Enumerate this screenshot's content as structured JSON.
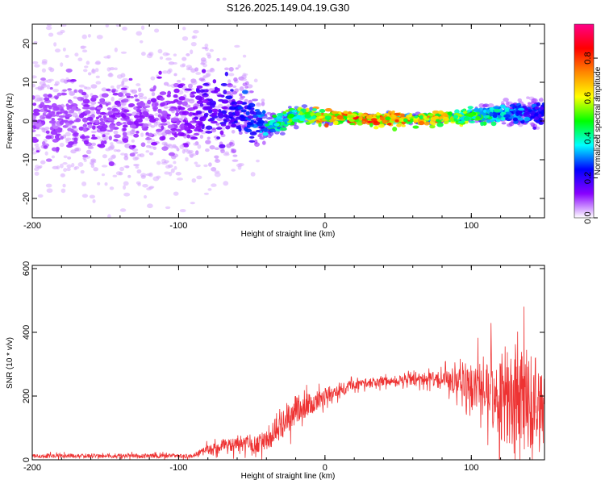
{
  "title": "S126.2025.149.04.19.G30",
  "chart_data": [
    {
      "type": "heatmap",
      "xlabel": "Height of straight line (km)",
      "ylabel": "Frequency (Hz)",
      "xlim": [
        -200,
        150
      ],
      "ylim": [
        -25,
        25
      ],
      "x_ticks": [
        -200,
        -100,
        0,
        100
      ],
      "x_tick_labels": [
        "-200",
        "-100",
        "0",
        "100"
      ],
      "y_ticks": [
        -20,
        -10,
        0,
        10,
        20
      ],
      "y_tick_labels": [
        "-20",
        "-10",
        "0",
        "10",
        "20"
      ],
      "colorbar": {
        "label": "Normalized spectral amplitude",
        "range": [
          0,
          0.97
        ],
        "ticks": [
          0,
          0.2,
          0.4,
          0.6,
          0.8
        ],
        "tick_labels": [
          "0.0",
          "0.2",
          "0.4",
          "0.6",
          "0.8"
        ],
        "colormap": [
          "#ffffff",
          "#8800ff",
          "#0000ff",
          "#00ffff",
          "#00ff00",
          "#ffff00",
          "#ff8800",
          "#ff0000",
          "#ff0088"
        ]
      },
      "ridge": {
        "x": [
          -200,
          -150,
          -100,
          -80,
          -60,
          -45,
          -40,
          -30,
          -20,
          -10,
          0,
          10,
          30,
          60,
          90,
          110,
          130,
          150
        ],
        "frequency": [
          0,
          0.5,
          1,
          3,
          2,
          0,
          -1,
          -0.5,
          1.5,
          1.5,
          0.5,
          1,
          0.5,
          0.5,
          1,
          1.5,
          2,
          2
        ]
      },
      "amplitude_profile": {
        "x": [
          -200,
          -100,
          -60,
          -45,
          -40,
          -20,
          0,
          20,
          40,
          80,
          110,
          150
        ],
        "amplitude": [
          0.1,
          0.12,
          0.25,
          0.3,
          0.45,
          0.55,
          0.75,
          0.85,
          0.8,
          0.7,
          0.45,
          0.25
        ]
      },
      "scatter_spread": {
        "x": [
          -200,
          -100,
          -50,
          -40,
          0,
          100,
          130,
          150
        ],
        "spread": [
          22,
          22,
          10,
          3,
          1,
          1,
          3,
          4
        ]
      }
    },
    {
      "type": "line",
      "xlabel": "Height of straight line (km)",
      "ylabel": "SNR (10 * v/v)",
      "xlim": [
        -200,
        150
      ],
      "ylim": [
        0,
        610
      ],
      "x_ticks": [
        -200,
        -100,
        0,
        100
      ],
      "x_tick_labels": [
        "-200",
        "-100",
        "0",
        "100"
      ],
      "y_ticks": [
        0,
        200,
        400,
        600
      ],
      "y_tick_labels": [
        "0",
        "200",
        "400",
        "600"
      ],
      "color": "#ee3333",
      "envelope": {
        "x": [
          -200,
          -90,
          -80,
          -65,
          -50,
          -40,
          -30,
          -20,
          -10,
          0,
          10,
          20,
          35,
          50,
          70,
          90,
          100,
          110,
          120,
          130,
          140,
          150
        ],
        "median": [
          12,
          12,
          30,
          50,
          45,
          60,
          110,
          160,
          175,
          200,
          220,
          235,
          245,
          250,
          255,
          245,
          235,
          220,
          200,
          190,
          180,
          180
        ],
        "spread": [
          8,
          8,
          20,
          30,
          30,
          40,
          60,
          60,
          40,
          35,
          25,
          20,
          18,
          18,
          25,
          50,
          80,
          120,
          170,
          220,
          200,
          180
        ]
      }
    }
  ]
}
